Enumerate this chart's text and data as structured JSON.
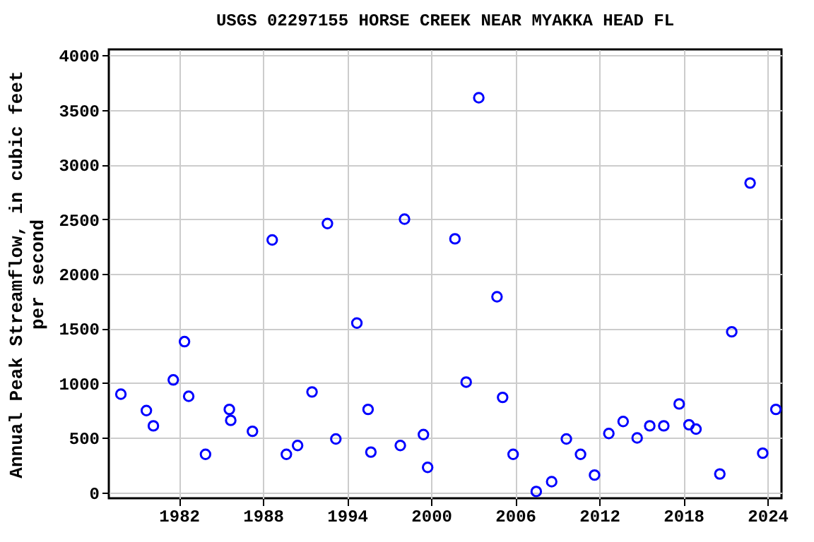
{
  "chart_data": {
    "type": "scatter",
    "title": "USGS 02297155 HORSE CREEK NEAR MYAKKA HEAD FL",
    "ylabel": "Annual Peak Streamflow, in cubic feet\nper second",
    "x": [
      1977.86,
      1979.68,
      1980.18,
      1981.6,
      1982.4,
      1982.7,
      1983.9,
      1985.6,
      1985.7,
      1987.25,
      1988.66,
      1989.67,
      1990.47,
      1991.5,
      1992.6,
      1993.2,
      1994.7,
      1995.5,
      1995.7,
      1997.8,
      1998.1,
      1999.45,
      1999.75,
      2001.7,
      2002.5,
      2003.4,
      2004.7,
      2005.1,
      2005.85,
      2007.5,
      2008.6,
      2009.65,
      2010.66,
      2011.66,
      2012.68,
      2013.7,
      2014.7,
      2015.6,
      2016.6,
      2017.7,
      2018.4,
      2018.9,
      2020.6,
      2021.45,
      2022.76,
      2023.66,
      2024.6
    ],
    "series": [
      {
        "color": "#0000ff",
        "values": [
          900,
          750,
          610,
          1030,
          1380,
          880,
          350,
          760,
          660,
          560,
          2310,
          350,
          430,
          920,
          2460,
          490,
          1550,
          760,
          370,
          430,
          2500,
          530,
          230,
          2320,
          1010,
          3610,
          1790,
          870,
          350,
          10,
          100,
          490,
          350,
          160,
          540,
          650,
          500,
          610,
          610,
          810,
          620,
          580,
          170,
          1470,
          2830,
          360,
          760
        ]
      }
    ],
    "xlim": [
      1977,
      2025
    ],
    "xticks": [
      1982,
      1988,
      1994,
      2000,
      2006,
      2012,
      2018,
      2024
    ],
    "ylim": [
      -52,
      4052
    ],
    "yticks": [
      0,
      500,
      1000,
      1500,
      2000,
      2500,
      3000,
      3500,
      4000
    ],
    "grid": true,
    "marker": "circle"
  }
}
